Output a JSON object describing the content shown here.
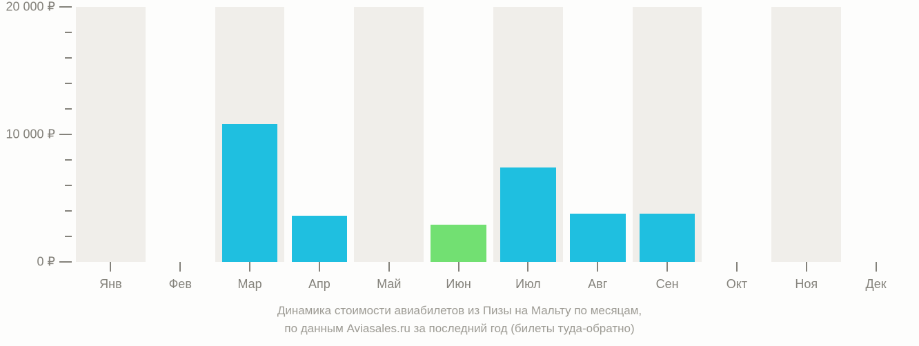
{
  "chart": {
    "type": "bar",
    "background_color": "#fdfdfc",
    "alt_stripe_color": "#f0eeea",
    "axis_color": "#84827b",
    "label_color": "#84827b",
    "caption_color": "#9d9b94",
    "bar_color_default": "#1fbfe0",
    "bar_color_highlight": "#72e072",
    "label_fontsize": 18,
    "caption_fontsize": 17,
    "ylim": [
      0,
      20000
    ],
    "y_major_ticks": [
      0,
      10000,
      20000
    ],
    "y_major_labels": [
      "0 ₽",
      "10 000 ₽",
      "20 000 ₽"
    ],
    "y_minor_step": 2000,
    "categories": [
      "Янв",
      "Фев",
      "Мар",
      "Апр",
      "Май",
      "Июн",
      "Июл",
      "Авг",
      "Сен",
      "Окт",
      "Ноя",
      "Дек"
    ],
    "values": [
      0,
      0,
      10800,
      3600,
      0,
      2900,
      7400,
      3800,
      3800,
      0,
      0,
      0
    ],
    "highlight_index": 5,
    "bar_width_ratio": 0.8,
    "caption_line1": "Динамика стоимости авиабилетов из Пизы на Мальту по месяцам,",
    "caption_line2": "по данным Aviasales.ru за последний год (билеты туда-обратно)"
  }
}
